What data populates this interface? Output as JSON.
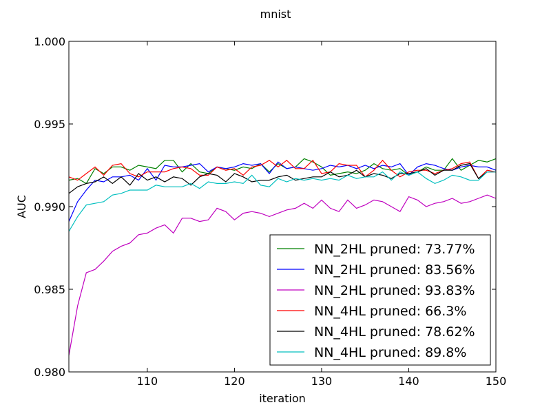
{
  "chart_data": {
    "type": "line",
    "title": "mnist",
    "xlabel": "iteration",
    "ylabel": "AUC",
    "xlim": [
      101,
      150
    ],
    "ylim": [
      0.98,
      1.0
    ],
    "xticks": [
      110,
      120,
      130,
      140,
      150
    ],
    "xtick_labels": [
      "110",
      "120",
      "130",
      "140",
      "150"
    ],
    "yticks": [
      0.98,
      0.985,
      0.99,
      0.995,
      1.0
    ],
    "ytick_labels": [
      "0.980",
      "0.985",
      "0.990",
      "0.995",
      "1.000"
    ],
    "grid": false,
    "legend_position": "lower-right",
    "x": [
      101,
      102,
      103,
      104,
      105,
      106,
      107,
      108,
      109,
      110,
      111,
      112,
      113,
      114,
      115,
      116,
      117,
      118,
      119,
      120,
      121,
      122,
      123,
      124,
      125,
      126,
      127,
      128,
      129,
      130,
      131,
      132,
      133,
      134,
      135,
      136,
      137,
      138,
      139,
      140,
      141,
      142,
      143,
      144,
      145,
      146,
      147,
      148,
      149,
      150
    ],
    "series": [
      {
        "name": "NN_2HL pruned: 73.77%",
        "color": "#008000",
        "values": [
          0.9916,
          0.9917,
          0.9914,
          0.9923,
          0.992,
          0.9924,
          0.9924,
          0.9922,
          0.9925,
          0.9924,
          0.9923,
          0.9928,
          0.9928,
          0.9921,
          0.9926,
          0.9921,
          0.992,
          0.9924,
          0.9923,
          0.9922,
          0.9924,
          0.9923,
          0.9926,
          0.9921,
          0.9926,
          0.9923,
          0.9924,
          0.9929,
          0.9927,
          0.9924,
          0.9919,
          0.992,
          0.9921,
          0.992,
          0.9922,
          0.9926,
          0.9923,
          0.9922,
          0.9923,
          0.9919,
          0.9921,
          0.9924,
          0.9922,
          0.9922,
          0.9929,
          0.9922,
          0.9925,
          0.9928,
          0.9927,
          0.9929
        ]
      },
      {
        "name": "NN_2HL pruned: 83.56%",
        "color": "#0000ff",
        "values": [
          0.9891,
          0.9903,
          0.991,
          0.9916,
          0.9915,
          0.9918,
          0.9918,
          0.9919,
          0.9916,
          0.9923,
          0.9916,
          0.9925,
          0.9924,
          0.9924,
          0.9925,
          0.9926,
          0.9921,
          0.9924,
          0.9923,
          0.9924,
          0.9926,
          0.9925,
          0.9926,
          0.992,
          0.9927,
          0.9923,
          0.9924,
          0.9923,
          0.9922,
          0.9923,
          0.9925,
          0.9924,
          0.9925,
          0.9923,
          0.9925,
          0.9923,
          0.9925,
          0.9924,
          0.9926,
          0.9919,
          0.9924,
          0.9926,
          0.9925,
          0.9923,
          0.9922,
          0.9924,
          0.9925,
          0.9924,
          0.9924,
          0.9922
        ]
      },
      {
        "name": "NN_2HL pruned: 93.83%",
        "color": "#bf00bf",
        "values": [
          0.981,
          0.984,
          0.986,
          0.9862,
          0.9867,
          0.9873,
          0.9876,
          0.9878,
          0.9883,
          0.9884,
          0.9887,
          0.9889,
          0.9884,
          0.9893,
          0.9893,
          0.9891,
          0.9892,
          0.9899,
          0.9897,
          0.9892,
          0.9896,
          0.9897,
          0.9896,
          0.9894,
          0.9896,
          0.9898,
          0.9899,
          0.9902,
          0.9899,
          0.9904,
          0.9899,
          0.9897,
          0.9904,
          0.9899,
          0.9901,
          0.9904,
          0.9903,
          0.99,
          0.9897,
          0.9906,
          0.9904,
          0.99,
          0.9902,
          0.9903,
          0.9905,
          0.9902,
          0.9903,
          0.9905,
          0.9907,
          0.9905
        ]
      },
      {
        "name": "NN_4HL pruned: 66.3%",
        "color": "#ff0000",
        "values": [
          0.9918,
          0.9916,
          0.992,
          0.9924,
          0.9919,
          0.9925,
          0.9926,
          0.992,
          0.9918,
          0.9921,
          0.9921,
          0.9921,
          0.9923,
          0.9924,
          0.9923,
          0.9919,
          0.9919,
          0.9924,
          0.9922,
          0.9923,
          0.9919,
          0.9924,
          0.9925,
          0.9928,
          0.9924,
          0.9928,
          0.9923,
          0.9923,
          0.9928,
          0.992,
          0.9921,
          0.9926,
          0.9925,
          0.9925,
          0.9918,
          0.9922,
          0.9928,
          0.9922,
          0.9918,
          0.9921,
          0.9922,
          0.9922,
          0.992,
          0.9922,
          0.9923,
          0.9926,
          0.9927,
          0.9917,
          0.9922,
          0.9921
        ]
      },
      {
        "name": "NN_4HL pruned: 78.62%",
        "color": "#000000",
        "values": [
          0.9908,
          0.9912,
          0.9914,
          0.9915,
          0.9918,
          0.9914,
          0.9918,
          0.9913,
          0.992,
          0.9916,
          0.9918,
          0.9915,
          0.9918,
          0.9917,
          0.9913,
          0.9918,
          0.992,
          0.9919,
          0.9915,
          0.992,
          0.9918,
          0.9915,
          0.9916,
          0.9916,
          0.9918,
          0.9919,
          0.9916,
          0.9917,
          0.9918,
          0.9918,
          0.9921,
          0.9918,
          0.9919,
          0.9922,
          0.9918,
          0.992,
          0.9919,
          0.9917,
          0.992,
          0.992,
          0.9921,
          0.9923,
          0.9919,
          0.9922,
          0.9922,
          0.9925,
          0.9926,
          0.9917,
          0.9921,
          0.9921
        ]
      },
      {
        "name": "NN_4HL pruned: 89.8%",
        "color": "#00bfbf",
        "values": [
          0.9885,
          0.9894,
          0.9901,
          0.9902,
          0.9903,
          0.9907,
          0.9908,
          0.991,
          0.991,
          0.991,
          0.9913,
          0.9912,
          0.9912,
          0.9912,
          0.9914,
          0.9911,
          0.9915,
          0.9914,
          0.9914,
          0.9915,
          0.9914,
          0.9919,
          0.9913,
          0.9912,
          0.9917,
          0.9915,
          0.9917,
          0.9916,
          0.9917,
          0.9916,
          0.9917,
          0.9916,
          0.9919,
          0.9917,
          0.9918,
          0.9918,
          0.9921,
          0.9916,
          0.9921,
          0.9919,
          0.9921,
          0.9917,
          0.9914,
          0.9916,
          0.9919,
          0.9918,
          0.9916,
          0.9916,
          0.9921,
          0.9921
        ]
      }
    ]
  }
}
